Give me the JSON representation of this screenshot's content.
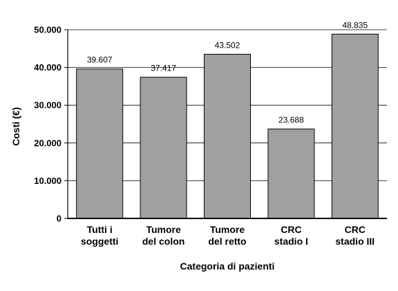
{
  "chart_data": {
    "type": "bar",
    "categories": [
      [
        "Tutti i",
        "soggetti"
      ],
      [
        "Tumore",
        "del colon"
      ],
      [
        "Tumore",
        "del retto"
      ],
      [
        "CRC",
        "stadio I"
      ],
      [
        "CRC",
        "stadio III"
      ]
    ],
    "values": [
      39607,
      37417,
      43502,
      23688,
      48835
    ],
    "value_labels": [
      "39.607",
      "37.417",
      "43.502",
      "23.688",
      "48.835"
    ],
    "yticks": [
      0,
      10000,
      20000,
      30000,
      40000,
      50000
    ],
    "ytick_labels": [
      "0",
      "10.000",
      "20.000",
      "30.000",
      "40.000",
      "50.000"
    ],
    "ylim": [
      0,
      50000
    ],
    "xlabel": "Categoria di pazienti",
    "ylabel": "Costi (€)",
    "title": "",
    "grid": true,
    "bar_color": "#a0a0a0",
    "bar_edge_color": "#000000"
  }
}
